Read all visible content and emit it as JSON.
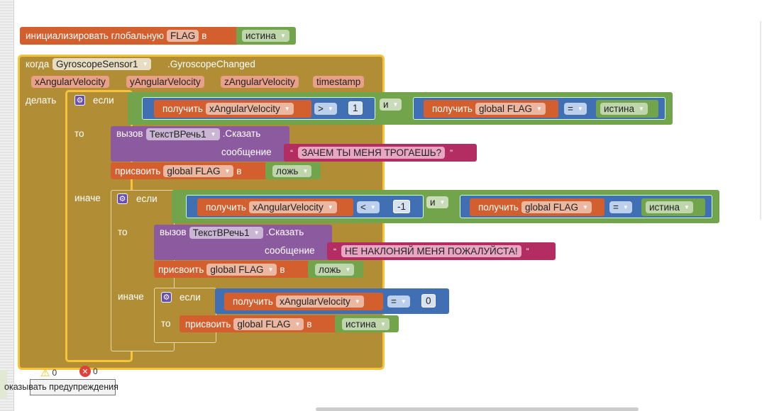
{
  "init": {
    "label": "инициализировать глобальную",
    "name": "FLAG",
    "in": "в",
    "value": "истина"
  },
  "event": {
    "when": "когда",
    "component": "GyroscopeSensor1",
    "event": ".GyroscopeChanged",
    "params": [
      "xAngularVelocity",
      "yAngularVelocity",
      "zAngularVelocity",
      "timestamp"
    ],
    "do": "делать"
  },
  "kw": {
    "if": "если",
    "then": "то",
    "else": "иначе",
    "get": "получить",
    "set": "присвоить",
    "in": "в",
    "and": "и",
    "call": "вызов",
    "say": ".Сказать",
    "message": "сообщение",
    "var": "xAngularVelocity",
    "gflag": "global FLAG",
    "true": "истина",
    "false": "ложь",
    "tts": "ТекстВРечь1"
  },
  "if1": {
    "op": ">",
    "num": "1",
    "op2": "=",
    "msg": "ЗАЧЕМ ТЫ МЕНЯ ТРОГАЕШЬ?"
  },
  "if2": {
    "op": "<",
    "num": "-1",
    "op2": "=",
    "msg": "НЕ НАКЛОНЯЙ МЕНЯ ПОЖАЛУЙСТА!"
  },
  "if3": {
    "op": "=",
    "num": "0"
  },
  "status": {
    "warnings": "0",
    "errors": "0",
    "toggle": "оказывать предупреждения"
  },
  "colors": {
    "event": "#b18e35",
    "variable": "#d35f2e",
    "logic": "#72a54b",
    "math": "#416fb4",
    "component": "#8c5b9f",
    "text": "#b32d63"
  }
}
